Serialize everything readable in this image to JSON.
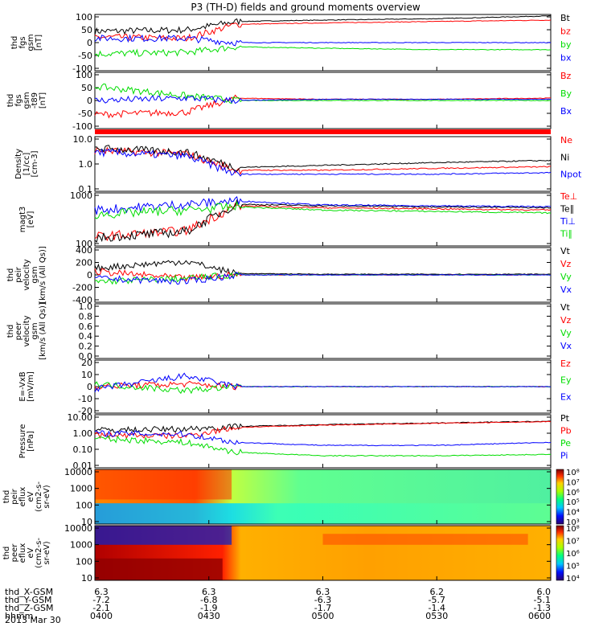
{
  "title": "P3 (TH-D) fields and ground moments overview",
  "footer": {
    "rows": [
      {
        "label": "thd_X-GSM",
        "values": [
          "6.3",
          "6.3",
          "6.3",
          "6.2",
          "6.0"
        ]
      },
      {
        "label": "thd_Y-GSM",
        "values": [
          "-7.2",
          "-6.8",
          "-6.3",
          "-5.7",
          "-5.1"
        ]
      },
      {
        "label": "thd_Z-GSM",
        "values": [
          "-2.1",
          "-1.9",
          "-1.7",
          "-1.4",
          "-1.3"
        ]
      },
      {
        "label": "hhmm",
        "values": [
          "0400",
          "0430",
          "0500",
          "0530",
          "0600"
        ]
      }
    ],
    "date": "2013 Mar 30"
  },
  "colors": {
    "black": "#000000",
    "red": "#ff0000",
    "green": "#00dd00",
    "blue": "#0000ff"
  },
  "chart_data": [
    {
      "type": "line",
      "panel": "fgs",
      "ylabel": [
        "thd",
        "fgs",
        "gsm",
        "[nT]"
      ],
      "yticks": [
        "100",
        "50",
        "0",
        "-50",
        "-100"
      ],
      "ylim": [
        -100,
        100
      ],
      "x": [
        "0400",
        "0420",
        "0430",
        "0500",
        "0530",
        "0600"
      ],
      "series": [
        {
          "name": "Bt",
          "color": "#000000",
          "values": [
            40,
            45,
            75,
            80,
            85,
            95
          ]
        },
        {
          "name": "bz",
          "color": "#ff0000",
          "values": [
            20,
            15,
            65,
            70,
            75,
            80
          ]
        },
        {
          "name": "by",
          "color": "#00dd00",
          "values": [
            -40,
            -35,
            -15,
            -20,
            -25,
            -25
          ]
        },
        {
          "name": "bx",
          "color": "#0000ff",
          "values": [
            15,
            15,
            0,
            0,
            0,
            0
          ]
        }
      ]
    },
    {
      "type": "line",
      "panel": "fgs-t89",
      "ylabel": [
        "thd",
        "fgs",
        "gsm",
        "-t89",
        "[nT]"
      ],
      "yticks": [
        "100",
        "50",
        "0",
        "-50",
        "-100"
      ],
      "ylim": [
        -120,
        120
      ],
      "x": [
        "0400",
        "0420",
        "0430",
        "0500",
        "0530",
        "0600"
      ],
      "series": [
        {
          "name": "Bz",
          "color": "#ff0000",
          "values": [
            -60,
            -50,
            10,
            5,
            5,
            10
          ]
        },
        {
          "name": "By",
          "color": "#00dd00",
          "values": [
            60,
            20,
            0,
            0,
            0,
            0
          ]
        },
        {
          "name": "Bx",
          "color": "#0000ff",
          "values": [
            0,
            10,
            0,
            5,
            5,
            5
          ]
        }
      ]
    },
    {
      "type": "line",
      "panel": "density",
      "log": true,
      "ylabel": [
        "Density",
        "[1/cc]",
        "[cm-3]"
      ],
      "yticks": [
        "10.0",
        "1.0",
        "0.1"
      ],
      "ylim": [
        0.1,
        30
      ],
      "x": [
        "0400",
        "0420",
        "0430",
        "0500",
        "0530",
        "0600"
      ],
      "series": [
        {
          "name": "Ne",
          "color": "#ff0000",
          "values": [
            7,
            5,
            0.9,
            0.9,
            1.1,
            1.3
          ]
        },
        {
          "name": "Ni",
          "color": "#000000",
          "values": [
            9,
            6,
            1.2,
            1.5,
            2.0,
            2.5
          ]
        },
        {
          "name": "Npot",
          "color": "#0000ff",
          "values": [
            6,
            4,
            0.6,
            0.6,
            0.6,
            0.7
          ]
        }
      ]
    },
    {
      "type": "line",
      "panel": "temperature",
      "log": true,
      "ylabel": [
        "magt3",
        "[eV]"
      ],
      "yticks": [
        "1000",
        "100"
      ],
      "ylim": [
        40,
        4000
      ],
      "x": [
        "0400",
        "0420",
        "0430",
        "0500",
        "0530",
        "0600"
      ],
      "series": [
        {
          "name": "Te⊥",
          "color": "#ff0000",
          "values": [
            90,
            150,
            1300,
            1100,
            1000,
            900
          ]
        },
        {
          "name": "Te∥",
          "color": "#000000",
          "values": [
            80,
            140,
            1500,
            1300,
            1200,
            1100
          ]
        },
        {
          "name": "Ti⊥",
          "color": "#0000ff",
          "values": [
            900,
            1500,
            2000,
            1400,
            1300,
            1200
          ]
        },
        {
          "name": "Ti∥",
          "color": "#00dd00",
          "values": [
            600,
            900,
            1200,
            900,
            800,
            700
          ]
        }
      ]
    },
    {
      "type": "line",
      "panel": "peir-velocity",
      "ylabel": [
        "thd",
        "peir",
        "velocity",
        "gsm",
        "[km/s (All Qs)]"
      ],
      "yticks": [
        "400",
        "200",
        "0",
        "-200",
        "-400"
      ],
      "ylim": [
        -400,
        400
      ],
      "x": [
        "0400",
        "0420",
        "0430",
        "0500",
        "0530",
        "0600"
      ],
      "series": [
        {
          "name": "Vt",
          "color": "#000000",
          "values": [
            100,
            200,
            20,
            10,
            10,
            10
          ]
        },
        {
          "name": "Vz",
          "color": "#ff0000",
          "values": [
            50,
            -50,
            0,
            0,
            0,
            0
          ]
        },
        {
          "name": "Vy",
          "color": "#00dd00",
          "values": [
            -100,
            -50,
            0,
            0,
            0,
            0
          ]
        },
        {
          "name": "Vx",
          "color": "#0000ff",
          "values": [
            -50,
            -100,
            0,
            0,
            0,
            0
          ]
        }
      ]
    },
    {
      "type": "line",
      "panel": "peer-velocity",
      "ylabel": [
        "thd",
        "peer",
        "velocity",
        "gsm",
        "[km/s (All Qs)]"
      ],
      "yticks": [
        "1.0",
        "0.8",
        "0.6",
        "0.4",
        "0.2",
        "0.0"
      ],
      "ylim": [
        0,
        1
      ],
      "legend": [
        "Vt",
        "Vz",
        "Vy",
        "Vx"
      ],
      "series": []
    },
    {
      "type": "line",
      "panel": "efield",
      "ylabel": [
        "E=-VxB",
        "[mV/m]"
      ],
      "yticks": [
        "20",
        "10",
        "0",
        "-10",
        "-20"
      ],
      "ylim": [
        -20,
        20
      ],
      "x": [
        "0400",
        "0420",
        "0430",
        "0500",
        "0530",
        "0600"
      ],
      "series": [
        {
          "name": "Ez",
          "color": "#ff0000",
          "values": [
            0,
            2,
            0,
            0,
            0,
            0
          ]
        },
        {
          "name": "Ey",
          "color": "#00dd00",
          "values": [
            2,
            -3,
            0,
            0,
            0,
            0
          ]
        },
        {
          "name": "Ex",
          "color": "#0000ff",
          "values": [
            -2,
            8,
            0,
            0,
            0,
            0
          ]
        }
      ]
    },
    {
      "type": "line",
      "panel": "pressure",
      "log": true,
      "ylabel": [
        "Pressure",
        "[nPa]"
      ],
      "yticks": [
        "10.00",
        "1.00",
        "0.10",
        "0.01"
      ],
      "ylim": [
        0.01,
        12
      ],
      "x": [
        "0400",
        "0420",
        "0430",
        "0500",
        "0530",
        "0600"
      ],
      "series": [
        {
          "name": "Pt",
          "color": "#000000",
          "values": [
            1.5,
            1.8,
            2.5,
            3.2,
            4.0,
            5.0
          ]
        },
        {
          "name": "Pb",
          "color": "#ff0000",
          "values": [
            0.8,
            0.7,
            2.2,
            3.0,
            3.8,
            4.8
          ]
        },
        {
          "name": "Pe",
          "color": "#00dd00",
          "values": [
            0.5,
            0.3,
            0.08,
            0.05,
            0.05,
            0.06
          ]
        },
        {
          "name": "Pi",
          "color": "#0000ff",
          "values": [
            1.0,
            0.9,
            0.3,
            0.2,
            0.2,
            0.3
          ]
        }
      ]
    },
    {
      "type": "heatmap",
      "panel": "peir-spectrogram",
      "ylabel": [
        "thd",
        "peir",
        "eflux",
        "eV",
        "(cm2-s-",
        "sr-eV)"
      ],
      "yticks": [
        "10000",
        "1000",
        "100",
        "10"
      ],
      "colorbar_ticks": [
        "10⁸",
        "10⁷",
        "10⁶",
        "10⁵",
        "10⁴",
        "10³"
      ]
    },
    {
      "type": "heatmap",
      "panel": "peer-spectrogram",
      "ylabel": [
        "thd",
        "peer",
        "eflux",
        "eV",
        "(cm2-s-",
        "sr-eV)"
      ],
      "yticks": [
        "10000",
        "1000",
        "100",
        "10"
      ],
      "colorbar_ticks": [
        "10⁸",
        "10⁷",
        "10⁶",
        "10⁵",
        "10⁴"
      ]
    }
  ]
}
